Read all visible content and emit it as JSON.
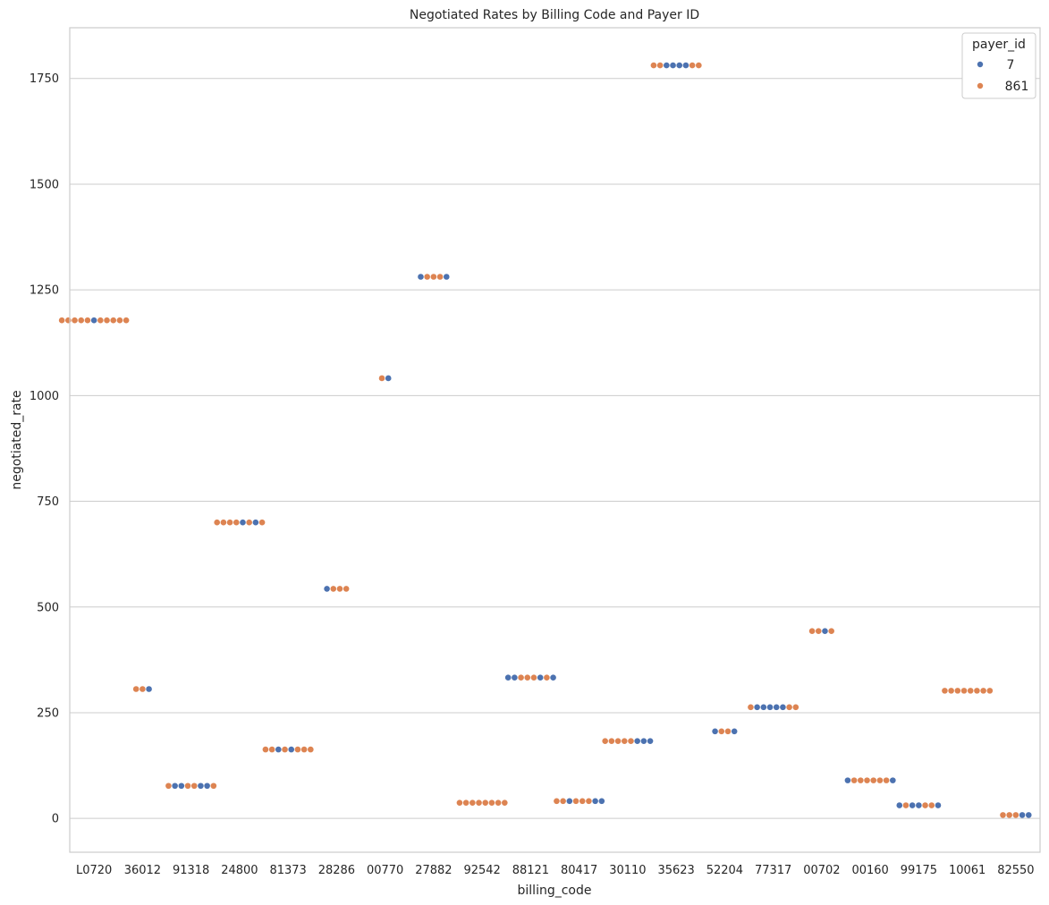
{
  "chart_data": {
    "type": "scatter",
    "subtype": "swarm",
    "title": "Negotiated Rates by Billing Code and Payer ID",
    "xlabel": "billing_code",
    "ylabel": "negotiated_rate",
    "ylim": [
      -80,
      1870
    ],
    "yticks": [
      0,
      250,
      500,
      750,
      1000,
      1250,
      1500,
      1750
    ],
    "grid": "horizontal",
    "legend": {
      "title": "payer_id",
      "placement": "top-right",
      "entries": [
        {
          "label": "7",
          "color": "#4c72b0"
        },
        {
          "label": "861",
          "color": "#dd8452"
        }
      ]
    },
    "categories": [
      "L0720",
      "36012",
      "91318",
      "24800",
      "81373",
      "28286",
      "00770",
      "27882",
      "92542",
      "88121",
      "80417",
      "30110",
      "35623",
      "52204",
      "77317",
      "00702",
      "00160",
      "99175",
      "10061",
      "82550"
    ],
    "points": [
      {
        "code": "L0720",
        "rate": 1178,
        "payers": [
          "861",
          "861",
          "861",
          "861",
          "861",
          "7",
          "861",
          "861",
          "861",
          "861",
          "861"
        ]
      },
      {
        "code": "36012",
        "rate": 306,
        "payers": [
          "861",
          "861",
          "7"
        ]
      },
      {
        "code": "91318",
        "rate": 77,
        "payers": [
          "861",
          "7",
          "7",
          "861",
          "861",
          "7",
          "7",
          "861"
        ]
      },
      {
        "code": "24800",
        "rate": 700,
        "payers": [
          "861",
          "861",
          "861",
          "861",
          "7",
          "861",
          "7",
          "861"
        ]
      },
      {
        "code": "81373",
        "rate": 163,
        "payers": [
          "861",
          "861",
          "7",
          "861",
          "7",
          "861",
          "861",
          "861"
        ]
      },
      {
        "code": "28286",
        "rate": 543,
        "payers": [
          "7",
          "861",
          "861",
          "861"
        ]
      },
      {
        "code": "00770",
        "rate": 1041,
        "payers": [
          "861",
          "7"
        ]
      },
      {
        "code": "27882",
        "rate": 1281,
        "payers": [
          "7",
          "861",
          "861",
          "861",
          "7"
        ]
      },
      {
        "code": "92542",
        "rate": 37,
        "payers": [
          "861",
          "861",
          "861",
          "861",
          "861",
          "861",
          "861",
          "861"
        ]
      },
      {
        "code": "88121",
        "rate": 333,
        "payers": [
          "7",
          "7",
          "861",
          "861",
          "861",
          "7",
          "861",
          "7"
        ]
      },
      {
        "code": "80417",
        "rate": 41,
        "payers": [
          "861",
          "861",
          "7",
          "861",
          "861",
          "861",
          "7",
          "7"
        ]
      },
      {
        "code": "30110",
        "rate": 183,
        "payers": [
          "861",
          "861",
          "861",
          "861",
          "861",
          "7",
          "7",
          "7"
        ]
      },
      {
        "code": "35623",
        "rate": 1781,
        "payers": [
          "861",
          "861",
          "7",
          "7",
          "7",
          "7",
          "861",
          "861"
        ]
      },
      {
        "code": "52204",
        "rate": 206,
        "payers": [
          "7",
          "861",
          "861",
          "7"
        ]
      },
      {
        "code": "77317",
        "rate": 263,
        "payers": [
          "861",
          "7",
          "7",
          "7",
          "7",
          "7",
          "861",
          "861"
        ]
      },
      {
        "code": "00702",
        "rate": 443,
        "payers": [
          "861",
          "861",
          "7",
          "861"
        ]
      },
      {
        "code": "00160",
        "rate": 90,
        "payers": [
          "7",
          "861",
          "861",
          "861",
          "861",
          "861",
          "861",
          "7"
        ]
      },
      {
        "code": "99175",
        "rate": 31,
        "payers": [
          "7",
          "861",
          "7",
          "7",
          "861",
          "861",
          "7"
        ]
      },
      {
        "code": "10061",
        "rate": 302,
        "payers": [
          "861",
          "861",
          "861",
          "861",
          "861",
          "861",
          "861",
          "861"
        ]
      },
      {
        "code": "82550",
        "rate": 8,
        "payers": [
          "861",
          "861",
          "861",
          "7",
          "7"
        ]
      }
    ]
  }
}
